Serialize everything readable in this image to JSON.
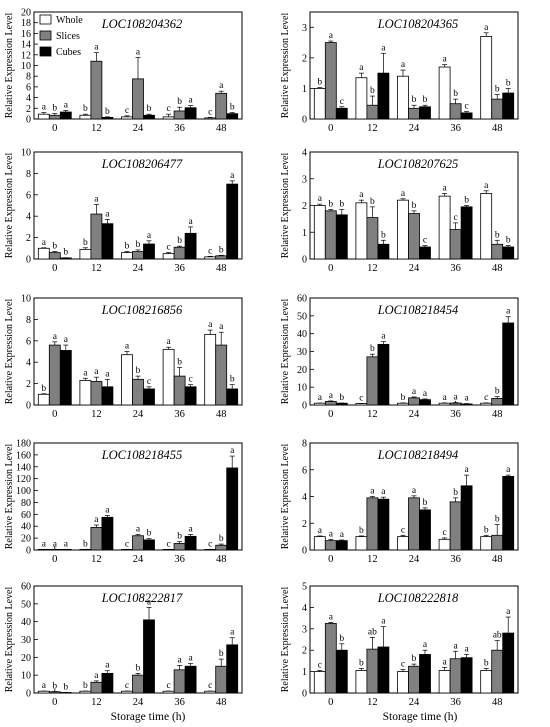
{
  "figure": {
    "ylabel": "Relative Expression Level",
    "xlabel": "Storage time (h)",
    "x_ticks": [
      "0",
      "12",
      "24",
      "36",
      "48"
    ],
    "legend": [
      {
        "name": "Whole",
        "color": "#ffffff"
      },
      {
        "name": "Slices",
        "color": "#808080"
      },
      {
        "name": "Cubes",
        "color": "#000000"
      }
    ]
  },
  "chart_data": [
    {
      "type": "bar",
      "title": "LOC108204362",
      "categories": [
        "0",
        "12",
        "24",
        "36",
        "48"
      ],
      "ylim": [
        0,
        20
      ],
      "yticks": [
        0,
        2,
        4,
        6,
        8,
        10,
        12,
        14,
        16,
        18,
        20
      ],
      "series": [
        {
          "name": "Whole",
          "values": [
            0.9,
            0.7,
            0.4,
            0.4,
            0.2
          ],
          "errors": [
            0.3,
            0.2,
            0.2,
            0.5,
            0.1
          ],
          "letters": [
            "a",
            "b",
            "c",
            "c",
            "c"
          ]
        },
        {
          "name": "Slices",
          "values": [
            0.7,
            10.8,
            7.5,
            1.5,
            4.8
          ],
          "errors": [
            0.3,
            1.6,
            4.0,
            0.7,
            0.4
          ],
          "letters": [
            "b",
            "a",
            "a",
            "b",
            "a"
          ]
        },
        {
          "name": "Cubes",
          "values": [
            1.3,
            0.3,
            0.7,
            2.1,
            1.0
          ],
          "errors": [
            0.3,
            0.1,
            0.2,
            0.4,
            0.2
          ],
          "letters": [
            "a",
            "b",
            "b",
            "a",
            "b"
          ]
        }
      ]
    },
    {
      "type": "bar",
      "title": "LOC108204365",
      "categories": [
        "0",
        "12",
        "24",
        "36",
        "48"
      ],
      "ylim": [
        0,
        3.5
      ],
      "yticks": [
        0,
        1,
        2,
        3
      ],
      "series": [
        {
          "name": "Whole",
          "values": [
            1.0,
            1.35,
            1.4,
            1.7,
            2.7
          ],
          "errors": [
            0.03,
            0.15,
            0.2,
            0.08,
            0.12
          ],
          "letters": [
            "b",
            "a",
            "a",
            "a",
            "a"
          ]
        },
        {
          "name": "Slices",
          "values": [
            2.5,
            0.45,
            0.35,
            0.5,
            0.65
          ],
          "errors": [
            0.05,
            0.3,
            0.1,
            0.15,
            0.15
          ],
          "letters": [
            "a",
            "b",
            "b",
            "b",
            "b"
          ]
        },
        {
          "name": "Cubes",
          "values": [
            0.35,
            1.5,
            0.4,
            0.2,
            0.85
          ],
          "errors": [
            0.05,
            0.65,
            0.05,
            0.04,
            0.15
          ],
          "letters": [
            "c",
            "a",
            "b",
            "c",
            "b"
          ]
        }
      ]
    },
    {
      "type": "bar",
      "title": "LOC108206477",
      "categories": [
        "0",
        "12",
        "24",
        "36",
        "48"
      ],
      "ylim": [
        0,
        10
      ],
      "yticks": [
        0,
        2,
        4,
        6,
        8,
        10
      ],
      "series": [
        {
          "name": "Whole",
          "values": [
            1.0,
            0.9,
            0.6,
            0.5,
            0.2
          ],
          "errors": [
            0.05,
            0.15,
            0.1,
            0.1,
            0.05
          ],
          "letters": [
            "a",
            "b",
            "b",
            "c",
            "c"
          ]
        },
        {
          "name": "Slices",
          "values": [
            0.6,
            4.2,
            0.7,
            1.1,
            0.3
          ],
          "errors": [
            0.1,
            0.9,
            0.15,
            0.1,
            0.05
          ],
          "letters": [
            "b",
            "a",
            "b",
            "b",
            "b"
          ]
        },
        {
          "name": "Cubes",
          "values": [
            0.1,
            3.3,
            1.4,
            2.4,
            7.0
          ],
          "errors": [
            0.02,
            0.4,
            0.3,
            0.6,
            0.3
          ],
          "letters": [
            "b",
            "a",
            "a",
            "a",
            "a"
          ]
        }
      ]
    },
    {
      "type": "bar",
      "title": "LOC108207625",
      "categories": [
        "0",
        "12",
        "24",
        "36",
        "48"
      ],
      "ylim": [
        0,
        4
      ],
      "yticks": [
        0,
        1,
        2,
        3,
        4
      ],
      "series": [
        {
          "name": "Whole",
          "values": [
            2.0,
            2.1,
            2.2,
            2.35,
            2.45
          ],
          "errors": [
            0.05,
            0.1,
            0.05,
            0.1,
            0.1
          ],
          "letters": [
            "a",
            "a",
            "a",
            "a",
            "a"
          ]
        },
        {
          "name": "Slices",
          "values": [
            1.8,
            1.55,
            1.7,
            1.1,
            0.55
          ],
          "errors": [
            0.05,
            0.4,
            0.1,
            0.25,
            0.15
          ],
          "letters": [
            "b",
            "b",
            "b",
            "c",
            "b"
          ]
        },
        {
          "name": "Cubes",
          "values": [
            1.65,
            0.55,
            0.45,
            1.95,
            0.45
          ],
          "errors": [
            0.2,
            0.15,
            0.05,
            0.05,
            0.05
          ],
          "letters": [
            "b",
            "b",
            "c",
            "b",
            "b"
          ]
        }
      ]
    },
    {
      "type": "bar",
      "title": "LOC108216856",
      "categories": [
        "0",
        "12",
        "24",
        "36",
        "48"
      ],
      "ylim": [
        0,
        10
      ],
      "yticks": [
        0,
        2,
        4,
        6,
        8,
        10
      ],
      "series": [
        {
          "name": "Whole",
          "values": [
            1.0,
            2.3,
            4.7,
            5.2,
            6.6
          ],
          "errors": [
            0.05,
            0.2,
            0.3,
            0.2,
            0.4
          ],
          "letters": [
            "b",
            "a",
            "a",
            "a",
            "a"
          ]
        },
        {
          "name": "Slices",
          "values": [
            5.6,
            2.2,
            2.4,
            2.7,
            5.6
          ],
          "errors": [
            0.3,
            0.4,
            0.3,
            0.8,
            1.2
          ],
          "letters": [
            "a",
            "a",
            "b",
            "b",
            "a"
          ]
        },
        {
          "name": "Cubes",
          "values": [
            5.1,
            1.7,
            1.5,
            1.7,
            1.5
          ],
          "errors": [
            0.5,
            0.7,
            0.2,
            0.2,
            0.4
          ],
          "letters": [
            "a",
            "a",
            "c",
            "c",
            "b"
          ]
        }
      ]
    },
    {
      "type": "bar",
      "title": "LOC108218454",
      "categories": [
        "0",
        "12",
        "24",
        "36",
        "48"
      ],
      "ylim": [
        0,
        60
      ],
      "yticks": [
        0,
        10,
        20,
        30,
        40,
        50,
        60
      ],
      "series": [
        {
          "name": "Whole",
          "values": [
            1.0,
            0.8,
            1.0,
            1.0,
            1.0
          ],
          "errors": [
            0.1,
            0.1,
            0.2,
            0.2,
            0.2
          ],
          "letters": [
            "a",
            "c",
            "b",
            "a",
            "c"
          ]
        },
        {
          "name": "Slices",
          "values": [
            2.0,
            27.0,
            4.0,
            1.1,
            3.7
          ],
          "errors": [
            0.3,
            1.5,
            0.5,
            0.3,
            1.0
          ],
          "letters": [
            "a",
            "b",
            "a",
            "a",
            "b"
          ]
        },
        {
          "name": "Cubes",
          "values": [
            1.0,
            34.0,
            3.0,
            0.6,
            46.0
          ],
          "errors": [
            0.1,
            1.5,
            0.4,
            0.2,
            3.5
          ],
          "letters": [
            "b",
            "a",
            "a",
            "a",
            "a"
          ]
        }
      ]
    },
    {
      "type": "bar",
      "title": "LOC108218455",
      "categories": [
        "0",
        "12",
        "24",
        "36",
        "48"
      ],
      "ylim": [
        0,
        180
      ],
      "yticks": [
        0,
        20,
        40,
        60,
        80,
        100,
        120,
        140,
        160,
        180
      ],
      "series": [
        {
          "name": "Whole",
          "values": [
            1.0,
            1.0,
            1.0,
            1.0,
            1.0
          ],
          "errors": [
            0.2,
            0.2,
            0.2,
            0.2,
            0.2
          ],
          "letters": [
            "a",
            "b",
            "c",
            "c",
            "c"
          ]
        },
        {
          "name": "Slices",
          "values": [
            1.0,
            38.0,
            24.0,
            11.0,
            8.0
          ],
          "errors": [
            0.2,
            4.0,
            2.0,
            3.0,
            2.0
          ],
          "letters": [
            "a",
            "a",
            "a",
            "b",
            "b"
          ]
        },
        {
          "name": "Cubes",
          "values": [
            1.0,
            55.0,
            17.0,
            23.0,
            138.0
          ],
          "errors": [
            0.2,
            3.0,
            2.0,
            3.0,
            20.0
          ],
          "letters": [
            "a",
            "a",
            "b",
            "a",
            "a"
          ]
        }
      ]
    },
    {
      "type": "bar",
      "title": "LOC108218494",
      "categories": [
        "0",
        "12",
        "24",
        "36",
        "48"
      ],
      "ylim": [
        0,
        8
      ],
      "yticks": [
        0,
        2,
        4,
        6,
        8
      ],
      "series": [
        {
          "name": "Whole",
          "values": [
            1.0,
            1.0,
            1.0,
            0.8,
            1.0
          ],
          "errors": [
            0.05,
            0.05,
            0.1,
            0.1,
            0.1
          ],
          "letters": [
            "a",
            "b",
            "c",
            "c",
            "b"
          ]
        },
        {
          "name": "Slices",
          "values": [
            0.7,
            3.9,
            3.9,
            3.6,
            1.1
          ],
          "errors": [
            0.1,
            0.1,
            0.15,
            0.3,
            0.8
          ],
          "letters": [
            "a",
            "a",
            "a",
            "b",
            "b"
          ]
        },
        {
          "name": "Cubes",
          "values": [
            0.7,
            3.8,
            3.0,
            4.8,
            5.5
          ],
          "errors": [
            0.05,
            0.15,
            0.15,
            0.8,
            0.1
          ],
          "letters": [
            "a",
            "a",
            "b",
            "a",
            "a"
          ]
        }
      ]
    },
    {
      "type": "bar",
      "title": "LOC108222817",
      "categories": [
        "0",
        "12",
        "24",
        "36",
        "48"
      ],
      "ylim": [
        0,
        60
      ],
      "yticks": [
        0,
        10,
        20,
        30,
        40,
        50,
        60
      ],
      "series": [
        {
          "name": "Whole",
          "values": [
            1.0,
            1.0,
            1.0,
            1.0,
            1.0
          ],
          "errors": [
            0.1,
            0.1,
            0.1,
            0.1,
            0.1
          ],
          "letters": [
            "a",
            "b",
            "c",
            "c",
            "c"
          ]
        },
        {
          "name": "Slices",
          "values": [
            0.7,
            6.0,
            10.0,
            13.0,
            15.0
          ],
          "errors": [
            0.1,
            0.8,
            1.0,
            2.5,
            4.0
          ],
          "letters": [
            "b",
            "a",
            "b",
            "a",
            "b"
          ]
        },
        {
          "name": "Cubes",
          "values": [
            0.3,
            11.0,
            41.0,
            15.0,
            27.0
          ],
          "errors": [
            0.05,
            1.5,
            7.0,
            1.5,
            4.0
          ],
          "letters": [
            "b",
            "a",
            "a",
            "a",
            "a"
          ]
        }
      ]
    },
    {
      "type": "bar",
      "title": "LOC108222818",
      "categories": [
        "0",
        "12",
        "24",
        "36",
        "48"
      ],
      "ylim": [
        0,
        5
      ],
      "yticks": [
        0,
        1,
        2,
        3,
        4,
        5
      ],
      "series": [
        {
          "name": "Whole",
          "values": [
            1.0,
            1.05,
            1.0,
            1.05,
            1.05
          ],
          "errors": [
            0.05,
            0.1,
            0.1,
            0.15,
            0.1
          ],
          "letters": [
            "c",
            "b",
            "c",
            "a",
            "b"
          ]
        },
        {
          "name": "Slices",
          "values": [
            3.25,
            2.05,
            1.25,
            1.6,
            2.0
          ],
          "errors": [
            0.05,
            0.55,
            0.1,
            0.35,
            0.45
          ],
          "letters": [
            "a",
            "ab",
            "b",
            "a",
            "ab"
          ]
        },
        {
          "name": "Cubes",
          "values": [
            2.0,
            2.15,
            1.8,
            1.65,
            2.8
          ],
          "errors": [
            0.3,
            0.95,
            0.2,
            0.15,
            0.75
          ],
          "letters": [
            "b",
            "a",
            "a",
            "a",
            "a"
          ]
        }
      ]
    }
  ]
}
